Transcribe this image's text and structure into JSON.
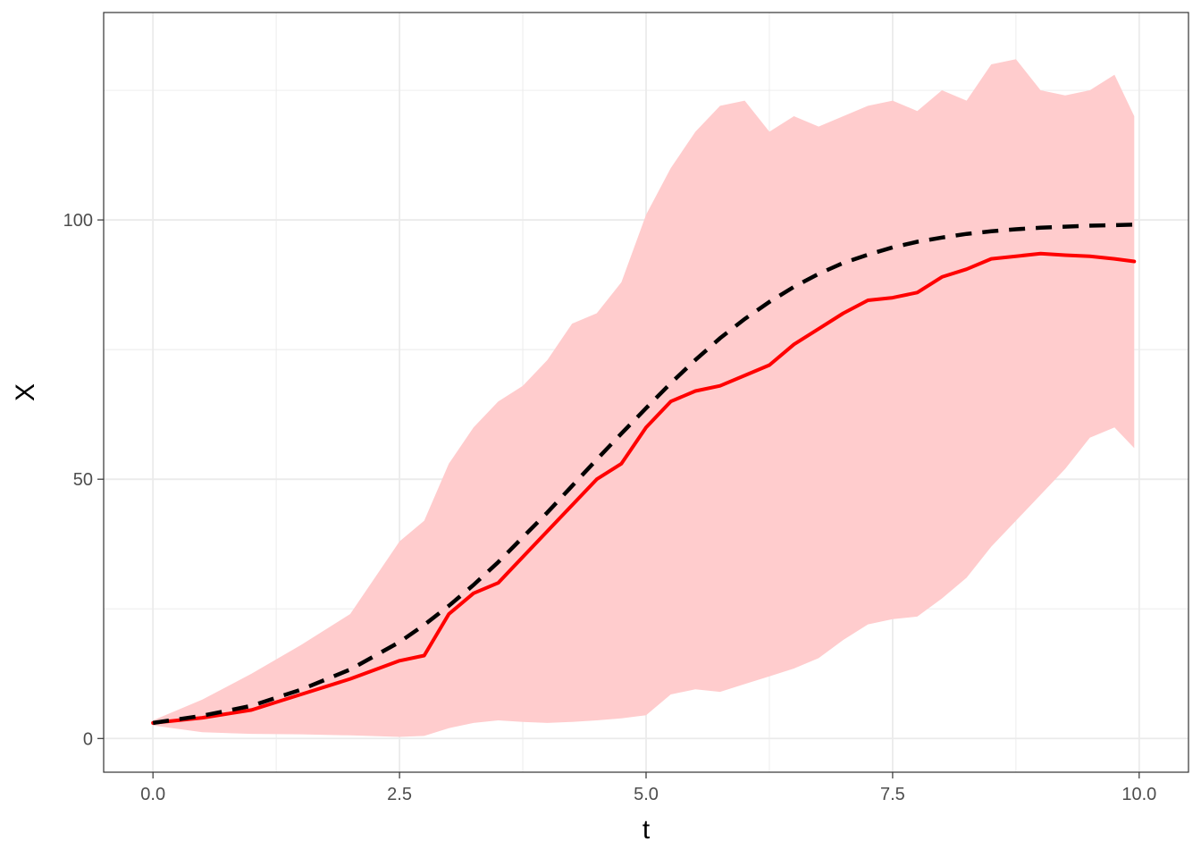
{
  "chart_data": {
    "type": "line",
    "xlabel": "t",
    "ylabel": "X",
    "xlim": [
      -0.5,
      10.5
    ],
    "ylim": [
      -6.5,
      140
    ],
    "x_ticks": [
      0,
      2.5,
      5,
      7.5,
      10
    ],
    "x_tick_labels": [
      "0.0",
      "2.5",
      "5.0",
      "7.5",
      "10.0"
    ],
    "y_ticks": [
      0,
      50,
      100
    ],
    "y_tick_labels": [
      "0",
      "50",
      "100"
    ],
    "grid": true,
    "legend": "none",
    "colors": {
      "band": "#ffcccd",
      "mean": "#ff0000",
      "deterministic": "#000000"
    },
    "x": [
      0,
      0.5,
      1,
      1.5,
      2,
      2.5,
      2.75,
      3,
      3.25,
      3.5,
      3.75,
      4,
      4.25,
      4.5,
      4.75,
      5,
      5.25,
      5.5,
      5.75,
      6,
      6.25,
      6.5,
      6.75,
      7,
      7.25,
      7.5,
      7.75,
      8,
      8.25,
      8.5,
      8.75,
      9,
      9.25,
      9.5,
      9.75,
      9.95
    ],
    "series": [
      {
        "role": "band",
        "lower": [
          2.5,
          1.2,
          0.9,
          0.8,
          0.6,
          0.3,
          0.5,
          2,
          3,
          3.5,
          3.2,
          3,
          3.2,
          3.5,
          3.9,
          4.5,
          8.5,
          9.5,
          9,
          10.5,
          12,
          13.5,
          15.5,
          19,
          22,
          23,
          23.5,
          27,
          31,
          37,
          42,
          47,
          52,
          58,
          60,
          56
        ],
        "upper": [
          3.5,
          7.5,
          12.5,
          18,
          24,
          38,
          42,
          53,
          60,
          65,
          68,
          73,
          80,
          82,
          88,
          101,
          110,
          117,
          122,
          123,
          117,
          120,
          118,
          120,
          122,
          123,
          121,
          125,
          123,
          130,
          131,
          125,
          124,
          125,
          128,
          120
        ],
        "style": "ribbon"
      },
      {
        "role": "mean",
        "values": [
          3,
          4,
          5.5,
          8.5,
          11.5,
          15,
          16,
          24,
          28,
          30,
          35,
          40,
          45,
          50,
          53,
          60,
          65,
          67,
          68,
          70,
          72,
          76,
          79,
          82,
          84.5,
          85,
          86,
          89,
          90.5,
          92.5,
          93,
          93.5,
          93.2,
          93,
          92.5,
          92
        ],
        "style": "solid"
      },
      {
        "role": "deterministic",
        "values": [
          3,
          4.4,
          6.3,
          9.4,
          13.3,
          18.6,
          21.9,
          25.6,
          29.6,
          34,
          38.8,
          43.6,
          48.7,
          53.8,
          58.8,
          63.7,
          68.5,
          73,
          77.2,
          80.9,
          84.2,
          87.1,
          89.6,
          91.7,
          93.3,
          94.7,
          95.8,
          96.6,
          97.3,
          97.8,
          98.2,
          98.5,
          98.7,
          98.9,
          99,
          99.1
        ],
        "style": "dashed"
      }
    ]
  }
}
